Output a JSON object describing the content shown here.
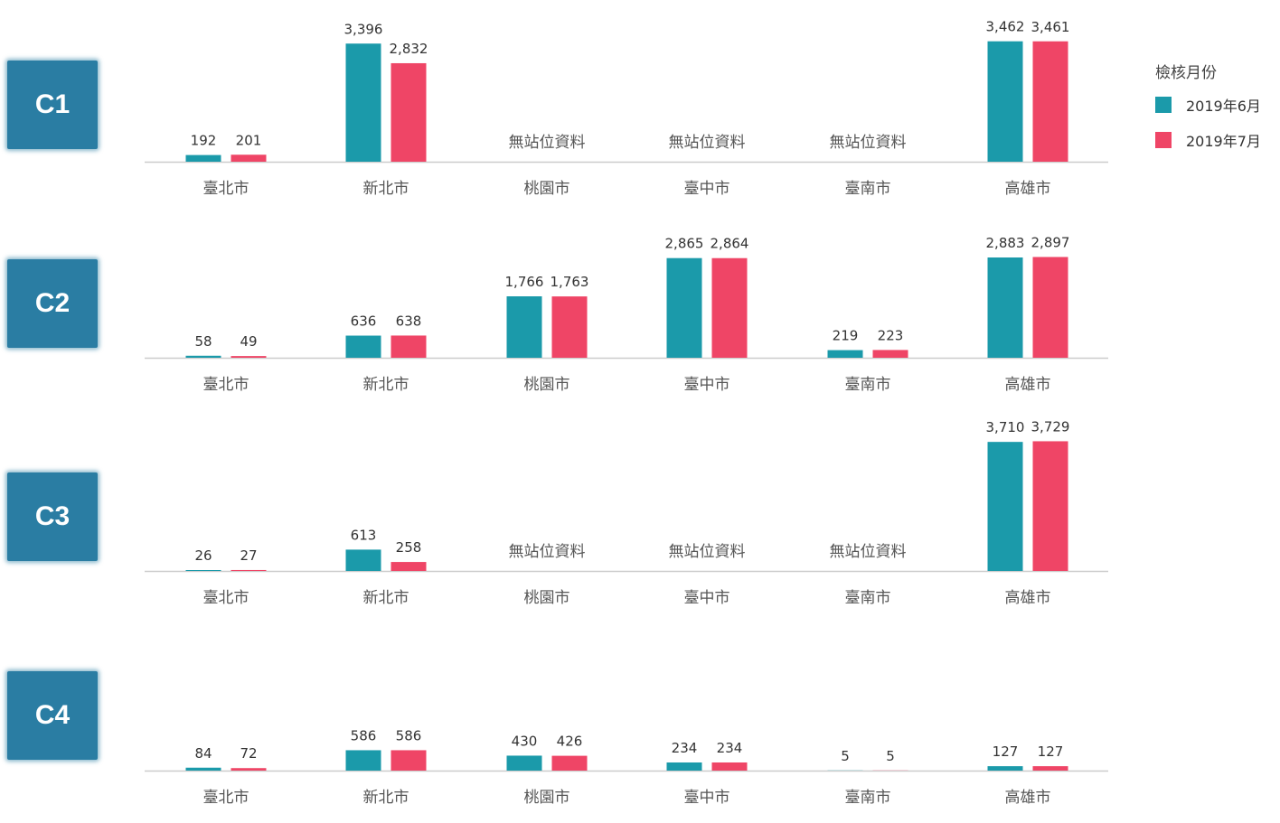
{
  "legend": {
    "title": "檢核月份",
    "items": [
      {
        "label": "2019年6月",
        "color": "#1b9aaa"
      },
      {
        "label": "2019年7月",
        "color": "#ef4566"
      }
    ]
  },
  "no_data_label": "無站位資料",
  "chart_data": [
    {
      "type": "bar",
      "panel": "C1",
      "categories": [
        "臺北市",
        "新北市",
        "桃園市",
        "臺中市",
        "臺南市",
        "高雄市"
      ],
      "series": [
        {
          "name": "2019年6月",
          "values": [
            192,
            3396,
            null,
            null,
            null,
            3462
          ]
        },
        {
          "name": "2019年7月",
          "values": [
            201,
            2832,
            null,
            null,
            null,
            3461
          ]
        }
      ]
    },
    {
      "type": "bar",
      "panel": "C2",
      "categories": [
        "臺北市",
        "新北市",
        "桃園市",
        "臺中市",
        "臺南市",
        "高雄市"
      ],
      "series": [
        {
          "name": "2019年6月",
          "values": [
            58,
            636,
            1766,
            2865,
            219,
            2883
          ]
        },
        {
          "name": "2019年7月",
          "values": [
            49,
            638,
            1763,
            2864,
            223,
            2897
          ]
        }
      ]
    },
    {
      "type": "bar",
      "panel": "C3",
      "categories": [
        "臺北市",
        "新北市",
        "桃園市",
        "臺中市",
        "臺南市",
        "高雄市"
      ],
      "series": [
        {
          "name": "2019年6月",
          "values": [
            26,
            613,
            null,
            null,
            null,
            3710
          ]
        },
        {
          "name": "2019年7月",
          "values": [
            27,
            258,
            null,
            null,
            null,
            3729
          ]
        }
      ]
    },
    {
      "type": "bar",
      "panel": "C4",
      "categories": [
        "臺北市",
        "新北市",
        "桃園市",
        "臺中市",
        "臺南市",
        "高雄市"
      ],
      "series": [
        {
          "name": "2019年6月",
          "values": [
            84,
            586,
            430,
            234,
            5,
            127
          ]
        },
        {
          "name": "2019年7月",
          "values": [
            72,
            586,
            426,
            234,
            5,
            127
          ]
        }
      ]
    }
  ]
}
